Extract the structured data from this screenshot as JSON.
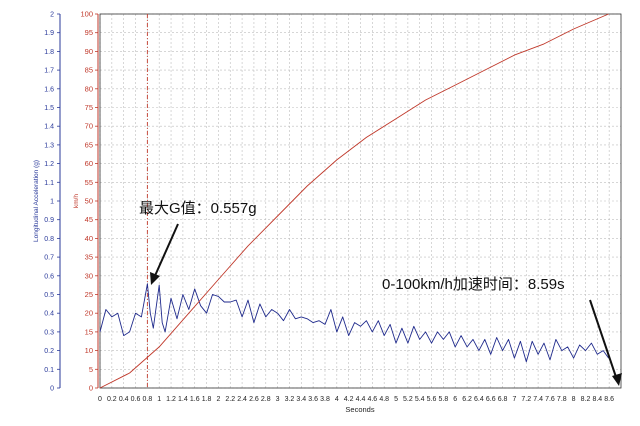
{
  "chart_data": {
    "type": "line",
    "xlabel": "Seconds",
    "ylabel_left": "Longitudinal Acceleration (g)",
    "ylabel_right": "km/h",
    "xlim": [
      0,
      8.8
    ],
    "ylim_left": [
      0,
      2
    ],
    "ylim_right": [
      0,
      100
    ],
    "grid": true,
    "x_ticks": [
      "0",
      "0.2",
      "0.4",
      "0.6",
      "0.8",
      "1",
      "1.2",
      "1.4",
      "1.6",
      "1.8",
      "2",
      "2.2",
      "2.4",
      "2.6",
      "2.8",
      "3",
      "3.2",
      "3.4",
      "3.6",
      "3.8",
      "4",
      "4.2",
      "4.4",
      "4.6",
      "4.8",
      "5",
      "5.2",
      "5.4",
      "5.6",
      "5.8",
      "6",
      "6.2",
      "6.4",
      "6.6",
      "6.8",
      "7",
      "7.2",
      "7.4",
      "7.6",
      "7.8",
      "8",
      "8.2",
      "8.4",
      "8.6"
    ],
    "y_ticks_left": [
      "0",
      "0.1",
      "0.2",
      "0.3",
      "0.4",
      "0.5",
      "0.6",
      "0.7",
      "0.8",
      "0.9",
      "1",
      "1.1",
      "1.2",
      "1.3",
      "1.4",
      "1.5",
      "1.6",
      "1.7",
      "1.8",
      "1.9",
      "2"
    ],
    "y_ticks_right": [
      "0",
      "5",
      "10",
      "15",
      "20",
      "25",
      "30",
      "35",
      "40",
      "45",
      "50",
      "55",
      "60",
      "65",
      "70",
      "75",
      "80",
      "85",
      "90",
      "95",
      "100"
    ],
    "series": [
      {
        "axis": "left",
        "color": "#1f2a8c",
        "x": [
          0,
          0.1,
          0.2,
          0.3,
          0.4,
          0.5,
          0.6,
          0.7,
          0.8,
          0.85,
          0.9,
          1.0,
          1.05,
          1.1,
          1.2,
          1.3,
          1.4,
          1.5,
          1.6,
          1.7,
          1.8,
          1.9,
          2.0,
          2.1,
          2.2,
          2.3,
          2.4,
          2.5,
          2.6,
          2.7,
          2.8,
          2.9,
          3.0,
          3.1,
          3.2,
          3.3,
          3.4,
          3.5,
          3.6,
          3.7,
          3.8,
          3.9,
          4.0,
          4.1,
          4.2,
          4.3,
          4.4,
          4.5,
          4.6,
          4.7,
          4.8,
          4.9,
          5.0,
          5.1,
          5.2,
          5.3,
          5.4,
          5.5,
          5.6,
          5.7,
          5.8,
          5.9,
          6.0,
          6.1,
          6.2,
          6.3,
          6.4,
          6.5,
          6.6,
          6.7,
          6.8,
          6.9,
          7.0,
          7.1,
          7.2,
          7.3,
          7.4,
          7.5,
          7.6,
          7.7,
          7.8,
          7.9,
          8.0,
          8.1,
          8.2,
          8.3,
          8.4,
          8.5,
          8.59
        ],
        "values": [
          0.3,
          0.42,
          0.38,
          0.4,
          0.28,
          0.3,
          0.4,
          0.38,
          0.557,
          0.4,
          0.32,
          0.55,
          0.35,
          0.3,
          0.48,
          0.37,
          0.5,
          0.42,
          0.53,
          0.44,
          0.4,
          0.5,
          0.49,
          0.46,
          0.46,
          0.47,
          0.38,
          0.47,
          0.35,
          0.45,
          0.38,
          0.42,
          0.4,
          0.36,
          0.42,
          0.37,
          0.38,
          0.37,
          0.35,
          0.36,
          0.34,
          0.42,
          0.3,
          0.38,
          0.28,
          0.35,
          0.33,
          0.36,
          0.3,
          0.36,
          0.28,
          0.34,
          0.24,
          0.32,
          0.24,
          0.33,
          0.26,
          0.3,
          0.24,
          0.3,
          0.26,
          0.3,
          0.22,
          0.28,
          0.22,
          0.26,
          0.2,
          0.26,
          0.18,
          0.27,
          0.2,
          0.26,
          0.16,
          0.25,
          0.14,
          0.25,
          0.18,
          0.24,
          0.15,
          0.26,
          0.2,
          0.22,
          0.16,
          0.23,
          0.2,
          0.24,
          0.18,
          0.2,
          0.16
        ]
      },
      {
        "axis": "right",
        "color": "#c0392b",
        "x": [
          0,
          0.5,
          1.0,
          1.5,
          2.0,
          2.5,
          3.0,
          3.5,
          4.0,
          4.5,
          5.0,
          5.5,
          6.0,
          6.5,
          7.0,
          7.5,
          8.0,
          8.59
        ],
        "values": [
          0,
          4,
          11,
          20,
          29,
          38,
          46,
          54,
          61,
          67,
          72,
          77,
          81,
          85,
          89,
          92,
          96,
          100
        ]
      }
    ],
    "max_g_marker_x": 0.8,
    "annotations": [
      {
        "text": "最大G值：0.557g"
      },
      {
        "text": "0-100km/h加速时间：8.59s"
      }
    ]
  }
}
